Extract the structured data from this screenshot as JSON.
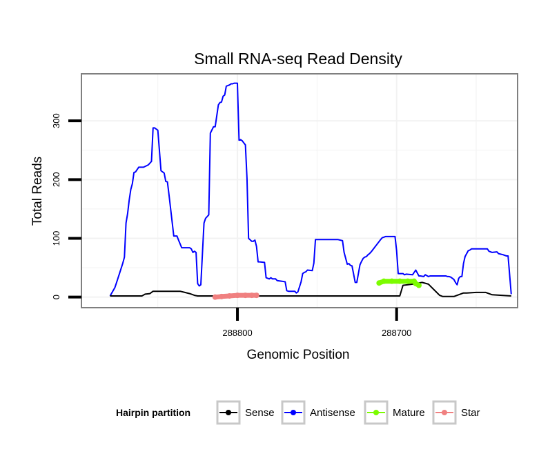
{
  "chart_data": {
    "type": "line",
    "title": "Small RNA-seq Read Density",
    "xlabel": "Genomic Position",
    "ylabel": "Total Reads",
    "x_reversed": true,
    "xlim": [
      288898,
      288624
    ],
    "ylim": [
      -18,
      380
    ],
    "x_ticks": [
      288800,
      288700
    ],
    "x_tick_labels": [
      "288800",
      "288700"
    ],
    "y_ticks": [
      0,
      100,
      200,
      300
    ],
    "y_tick_labels": [
      "0",
      "100",
      "200",
      "300"
    ],
    "grid": true,
    "legend": {
      "title": "Hairpin partition",
      "position": "bottom",
      "entries": [
        {
          "key": "sense",
          "label": "Sense",
          "color": "#000000"
        },
        {
          "key": "antisense",
          "label": "Antisense",
          "color": "#0000ff"
        },
        {
          "key": "mature",
          "label": "Mature",
          "color": "#7cfc00"
        },
        {
          "key": "star",
          "label": "Star",
          "color": "#f08080"
        }
      ]
    },
    "series": [
      {
        "name": "Antisense",
        "color": "#0000ff",
        "x": [
          288880,
          288877,
          288876,
          288874,
          288872,
          288871,
          288870,
          288869,
          288868,
          288867,
          288866,
          288865,
          288864,
          288862,
          288861,
          288859,
          288856,
          288854,
          288853,
          288852,
          288850,
          288848,
          288847,
          288846,
          288845,
          288844,
          288843,
          288840,
          288838,
          288837,
          288835,
          288832,
          288830,
          288829,
          288828,
          288827,
          288826,
          288825,
          288824,
          288823,
          288821,
          288820,
          288819,
          288818,
          288817,
          288815,
          288814,
          288812,
          288811,
          288810,
          288809,
          288808,
          288807,
          288806,
          288805,
          288804,
          288803,
          288802,
          288801,
          288800,
          288799,
          288798,
          288797,
          288795,
          288794,
          288793,
          288791,
          288790,
          288789,
          288788,
          288787,
          288786,
          288783,
          288782,
          288780,
          288779,
          288778,
          288776,
          288775,
          288772,
          288770,
          288769,
          288768,
          288766,
          288764,
          288763,
          288762,
          288760,
          288759,
          288758,
          288757,
          288756,
          288753,
          288752,
          288751,
          288749,
          288748,
          288737,
          288734,
          288733,
          288731,
          288730,
          288729,
          288728,
          288726,
          288725,
          288723,
          288722,
          288721,
          288720,
          288719,
          288718,
          288717,
          288716,
          288710,
          288709,
          288708,
          288707,
          288703,
          288701,
          288700,
          288699,
          288696,
          288695,
          288694,
          288690,
          288688,
          288686,
          288685,
          288683,
          288682,
          288680,
          288679,
          288678,
          288677,
          288676,
          288675,
          288674,
          288672,
          288670,
          288669,
          288668,
          288667,
          288666,
          288664,
          288663,
          288662,
          288661,
          288660,
          288659,
          288658,
          288657,
          288656,
          288655,
          288654,
          288653,
          288652,
          288651,
          288650,
          288649,
          288648,
          288646,
          288645,
          288644,
          288643,
          288642,
          288640,
          288637,
          288636,
          288633,
          288632,
          288631,
          288630,
          288628
        ],
        "y": [
          2,
          16,
          24,
          41,
          58,
          68,
          126,
          142,
          165,
          183,
          193,
          212,
          213,
          221,
          221,
          221,
          225,
          231,
          288,
          288,
          284,
          215,
          213,
          211,
          197,
          196,
          174,
          104,
          104,
          97,
          84,
          84,
          84,
          82,
          76,
          78,
          76,
          23,
          19,
          21,
          126,
          134,
          137,
          140,
          279,
          290,
          290,
          327,
          331,
          332,
          342,
          344,
          359,
          360,
          361,
          363,
          363,
          364,
          364,
          364,
          267,
          268,
          266,
          259,
          202,
          100,
          95,
          95,
          97,
          86,
          60,
          60,
          59,
          33,
          31,
          33,
          31,
          31,
          28,
          27,
          26,
          11,
          10,
          10,
          10,
          7,
          9,
          26,
          40,
          42,
          43,
          46,
          45,
          58,
          98,
          98,
          98,
          98,
          96,
          76,
          56,
          57,
          54,
          53,
          25,
          25,
          55,
          61,
          66,
          68,
          69,
          72,
          74,
          77,
          98,
          101,
          102,
          103,
          103,
          103,
          79,
          40,
          40,
          38,
          39,
          38,
          46,
          36,
          36,
          35,
          38,
          35,
          36,
          36,
          36,
          36,
          36,
          36,
          36,
          36,
          36,
          35,
          35,
          34,
          30,
          25,
          21,
          32,
          35,
          35,
          57,
          69,
          74,
          79,
          80,
          82,
          82,
          82,
          82,
          82,
          82,
          82,
          82,
          82,
          82,
          78,
          76,
          77,
          74,
          72,
          71,
          70,
          70,
          5
        ]
      },
      {
        "name": "Sense",
        "color": "#000000",
        "x": [
          288880,
          288860,
          288858,
          288855,
          288853,
          288850,
          288836,
          288833,
          288830,
          288827,
          288825,
          288820,
          288800,
          288720,
          288698,
          288696,
          288690,
          288686,
          288684,
          288680,
          288673,
          288671,
          288664,
          288658,
          288656,
          288650,
          288644,
          288640,
          288628
        ],
        "y": [
          2,
          2,
          5,
          6,
          10,
          10,
          10,
          8,
          6,
          3,
          2,
          2,
          2,
          2,
          2,
          20,
          22,
          24,
          25,
          22,
          3,
          1,
          1,
          7,
          7,
          8,
          8,
          4,
          2
        ]
      },
      {
        "name": "Mature",
        "color": "#7cfc00",
        "x": [
          288711,
          288708,
          288703,
          288698,
          288693,
          288689,
          288688,
          288686
        ],
        "y": [
          24,
          27,
          27,
          27,
          27,
          27,
          23,
          20
        ]
      },
      {
        "name": "Star",
        "color": "#f08080",
        "x": [
          288814,
          288810,
          288805,
          288800,
          288795,
          288791,
          288788
        ],
        "y": [
          0,
          1,
          2,
          3,
          3,
          3,
          3
        ]
      }
    ]
  }
}
